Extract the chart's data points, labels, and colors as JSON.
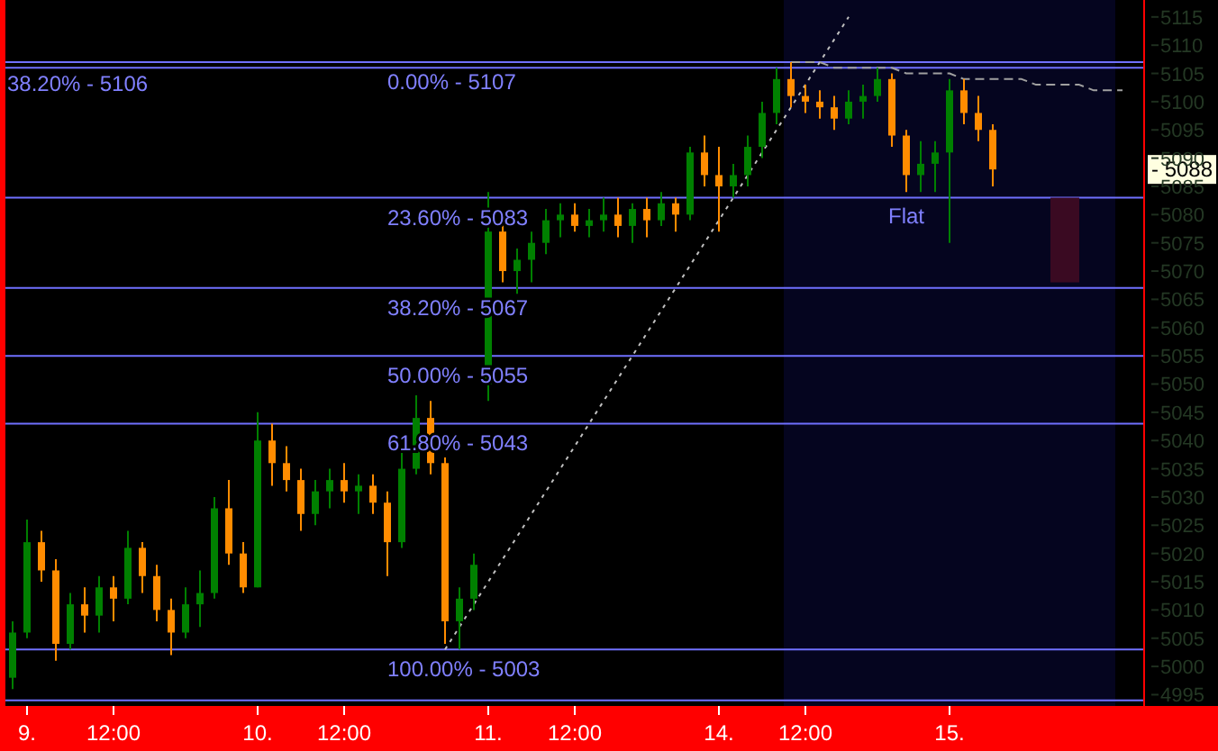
{
  "chart_data": {
    "type": "candlestick",
    "categories": [
      null,
      "9.",
      null,
      null,
      null,
      null,
      null,
      "12:00",
      null,
      null,
      null,
      null,
      null,
      null,
      null,
      null,
      null,
      "10.",
      null,
      null,
      null,
      null,
      null,
      "12:00",
      null,
      null,
      null,
      null,
      null,
      null,
      null,
      null,
      null,
      "11.",
      null,
      null,
      null,
      null,
      null,
      "12:00",
      null,
      null,
      null,
      null,
      null,
      null,
      null,
      null,
      null,
      "14.",
      null,
      null,
      null,
      null,
      null,
      "12:00",
      null,
      null,
      null,
      null,
      null,
      null,
      null,
      null,
      null,
      "15.",
      null,
      null,
      null,
      null,
      null,
      null,
      null,
      null,
      null,
      null,
      null,
      null,
      null
    ],
    "ohlc": [
      [
        4998,
        5008,
        4996,
        5006
      ],
      [
        5006,
        5026,
        5005,
        5022
      ],
      [
        5022,
        5024,
        5015,
        5017
      ],
      [
        5017,
        5019,
        5001,
        5004
      ],
      [
        5004,
        5013,
        5003,
        5011
      ],
      [
        5011,
        5014,
        5006,
        5009
      ],
      [
        5009,
        5016,
        5006,
        5014
      ],
      [
        5014,
        5016,
        5008,
        5012
      ],
      [
        5012,
        5024,
        5011,
        5021
      ],
      [
        5021,
        5022,
        5013,
        5016
      ],
      [
        5016,
        5018,
        5008,
        5010
      ],
      [
        5010,
        5012,
        5002,
        5006
      ],
      [
        5006,
        5014,
        5005,
        5011
      ],
      [
        5011,
        5017,
        5007,
        5013
      ],
      [
        5013,
        5030,
        5012,
        5028
      ],
      [
        5028,
        5033,
        5018,
        5020
      ],
      [
        5020,
        5022,
        5013,
        5014
      ],
      [
        5014,
        5045,
        5014,
        5040
      ],
      [
        5040,
        5043,
        5032,
        5036
      ],
      [
        5036,
        5039,
        5031,
        5033
      ],
      [
        5033,
        5035,
        5024,
        5027
      ],
      [
        5027,
        5033,
        5025,
        5031
      ],
      [
        5031,
        5035,
        5028,
        5033
      ],
      [
        5033,
        5036,
        5029,
        5031
      ],
      [
        5031,
        5034,
        5027,
        5032
      ],
      [
        5032,
        5034,
        5027,
        5029
      ],
      [
        5029,
        5031,
        5016,
        5022
      ],
      [
        5022,
        5038,
        5021,
        5035
      ],
      [
        5035,
        5048,
        5034,
        5044
      ],
      [
        5044,
        5047,
        5034,
        5036
      ],
      [
        5036,
        5037,
        5004,
        5008
      ],
      [
        5008,
        5014,
        5003,
        5012
      ],
      [
        5012,
        5020,
        5010,
        5018
      ],
      [
        5050,
        5084,
        5047,
        5077
      ],
      [
        5077,
        5079,
        5068,
        5070
      ],
      [
        5070,
        5074,
        5066,
        5072
      ],
      [
        5072,
        5077,
        5068,
        5075
      ],
      [
        5075,
        5081,
        5073,
        5079
      ],
      [
        5079,
        5082,
        5076,
        5080
      ],
      [
        5080,
        5082,
        5077,
        5078
      ],
      [
        5078,
        5081,
        5076,
        5079
      ],
      [
        5079,
        5083,
        5077,
        5080
      ],
      [
        5080,
        5083,
        5076,
        5078
      ],
      [
        5078,
        5082,
        5075,
        5081
      ],
      [
        5081,
        5083,
        5076,
        5079
      ],
      [
        5079,
        5084,
        5078,
        5082
      ],
      [
        5082,
        5083,
        5077,
        5080
      ],
      [
        5080,
        5092,
        5079,
        5091
      ],
      [
        5091,
        5094,
        5085,
        5087
      ],
      [
        5087,
        5092,
        5077,
        5085
      ],
      [
        5085,
        5089,
        5083,
        5087
      ],
      [
        5087,
        5094,
        5085,
        5092
      ],
      [
        5092,
        5100,
        5090,
        5098
      ],
      [
        5098,
        5106,
        5096,
        5104
      ],
      [
        5104,
        5107,
        5099,
        5101
      ],
      [
        5101,
        5103,
        5098,
        5100
      ],
      [
        5100,
        5102,
        5097,
        5099
      ],
      [
        5099,
        5101,
        5095,
        5097
      ],
      [
        5097,
        5102,
        5096,
        5100
      ],
      [
        5100,
        5103,
        5097,
        5101
      ],
      [
        5101,
        5106,
        5100,
        5104
      ],
      [
        5104,
        5105,
        5092,
        5094
      ],
      [
        5094,
        5095,
        5084,
        5087
      ],
      [
        5087,
        5093,
        5084,
        5089
      ],
      [
        5089,
        5093,
        5084,
        5091
      ],
      [
        5091,
        5104,
        5075,
        5102
      ],
      [
        5102,
        5104,
        5096,
        5098
      ],
      [
        5098,
        5101,
        5093,
        5095
      ],
      [
        5095,
        5096,
        5085,
        5088
      ],
      null,
      null,
      null,
      null,
      null,
      null,
      null,
      null,
      null,
      null
    ],
    "series": [
      {
        "type": "line",
        "values": [
          null,
          null,
          null,
          null,
          null,
          null,
          null,
          null,
          null,
          null,
          null,
          null,
          null,
          null,
          null,
          null,
          null,
          null,
          null,
          null,
          null,
          null,
          null,
          null,
          null,
          null,
          null,
          null,
          null,
          null,
          5003,
          5007,
          5011,
          5015,
          5019,
          5023,
          5027,
          5031,
          5035,
          5039,
          5043,
          5047,
          5051,
          5055,
          5059,
          5063,
          5067,
          5071,
          5075,
          5079,
          5083,
          5087,
          5091,
          5095,
          5099,
          5103,
          5107,
          5111,
          5115,
          null,
          null,
          null,
          null,
          null,
          null,
          null,
          null,
          null,
          null,
          null,
          null,
          null,
          null,
          null,
          null,
          null,
          null,
          null,
          null
        ],
        "color": "#c0c0c0",
        "line_style": "dotted"
      },
      {
        "type": "line",
        "values": [
          null,
          null,
          null,
          null,
          null,
          null,
          null,
          null,
          null,
          null,
          null,
          null,
          null,
          null,
          null,
          null,
          null,
          null,
          null,
          null,
          null,
          null,
          null,
          null,
          null,
          null,
          null,
          null,
          null,
          null,
          null,
          null,
          null,
          null,
          null,
          null,
          null,
          null,
          null,
          null,
          null,
          null,
          null,
          null,
          null,
          null,
          null,
          null,
          null,
          null,
          null,
          null,
          null,
          null,
          5107,
          5107,
          5107,
          5106,
          5106,
          5106,
          5106,
          5106,
          5105,
          5105,
          5105,
          5105,
          5104,
          5104,
          5104,
          5104,
          5104,
          5103,
          5103,
          5103,
          5103,
          5102,
          5102,
          5102,
          null
        ],
        "color": "#a0a0a0",
        "line_style": "dashed"
      },
      {
        "type": "bar",
        "base": [
          null,
          null,
          null,
          null,
          null,
          null,
          null,
          null,
          null,
          null,
          null,
          null,
          null,
          null,
          null,
          null,
          null,
          null,
          null,
          null,
          null,
          null,
          null,
          null,
          null,
          null,
          null,
          null,
          null,
          null,
          null,
          null,
          null,
          null,
          null,
          null,
          null,
          null,
          null,
          null,
          null,
          null,
          null,
          null,
          null,
          null,
          null,
          null,
          null,
          null,
          null,
          null,
          null,
          null,
          null,
          null,
          null,
          null,
          null,
          null,
          null,
          null,
          null,
          null,
          null,
          null,
          null,
          null,
          null,
          null,
          null,
          null,
          null,
          5068,
          null,
          null,
          null,
          null,
          null
        ],
        "values": [
          null,
          null,
          null,
          null,
          null,
          null,
          null,
          null,
          null,
          null,
          null,
          null,
          null,
          null,
          null,
          null,
          null,
          null,
          null,
          null,
          null,
          null,
          null,
          null,
          null,
          null,
          null,
          null,
          null,
          null,
          null,
          null,
          null,
          null,
          null,
          null,
          null,
          null,
          null,
          null,
          null,
          null,
          null,
          null,
          null,
          null,
          null,
          null,
          null,
          null,
          null,
          null,
          null,
          null,
          null,
          null,
          null,
          null,
          null,
          null,
          null,
          null,
          null,
          null,
          null,
          null,
          null,
          null,
          null,
          null,
          null,
          null,
          null,
          15,
          null,
          null,
          null,
          null,
          null
        ],
        "color": "#3a0a22"
      }
    ],
    "ylim": [
      4993,
      5118
    ],
    "yticks": [
      4995,
      5000,
      5005,
      5010,
      5015,
      5020,
      5025,
      5030,
      5035,
      5040,
      5045,
      5050,
      5055,
      5060,
      5065,
      5070,
      5075,
      5080,
      5085,
      5090,
      5095,
      5100,
      5105,
      5110,
      5115
    ],
    "ref_lines": [
      {
        "axis": "y",
        "value": 5106,
        "color": "#7070ff"
      },
      {
        "axis": "y",
        "value": 5107,
        "color": "#7070ff"
      },
      {
        "axis": "y",
        "value": 5083,
        "color": "#7070ff"
      },
      {
        "axis": "y",
        "value": 5067,
        "color": "#7070ff"
      },
      {
        "axis": "y",
        "value": 5055,
        "color": "#7070ff"
      },
      {
        "axis": "y",
        "value": 5043,
        "color": "#7070ff"
      },
      {
        "axis": "y",
        "value": 5003,
        "color": "#7070ff"
      },
      {
        "axis": "y",
        "value": 4994,
        "color": "#7070ff"
      }
    ],
    "annotations": [
      {
        "text": "38.20% - 5106",
        "y": 5106
      },
      {
        "text": "0.00% - 5107",
        "y": 5107
      },
      {
        "text": "23.60% - 5083",
        "y": 5083
      },
      {
        "text": "38.20% - 5067",
        "y": 5067
      },
      {
        "text": "50.00% - 5055",
        "y": 5055
      },
      {
        "text": "61.80% - 5043",
        "y": 5043
      },
      {
        "text": "100.00% - 5003",
        "y": 5003
      },
      "Flat",
      {
        "text": "- 5088",
        "y": 5088
      }
    ]
  }
}
